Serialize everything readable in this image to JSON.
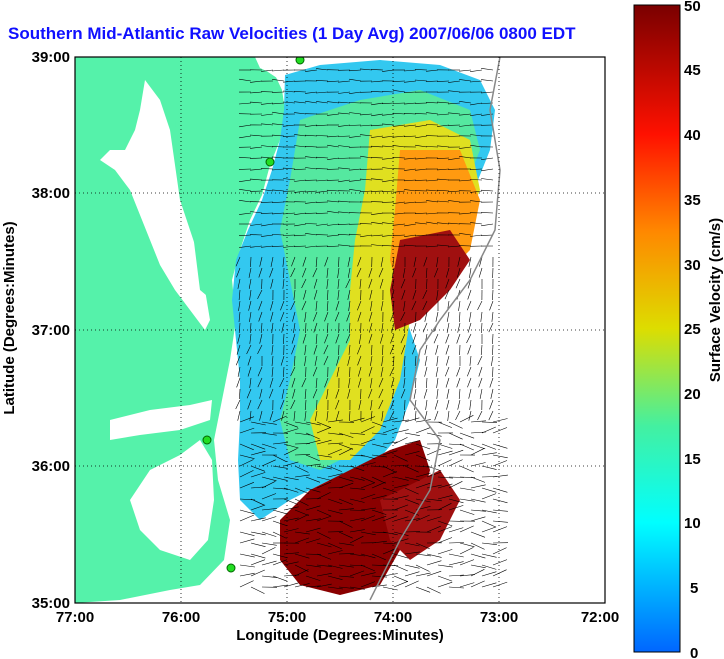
{
  "title": "Southern Mid-Atlantic Raw Velocities (1 Day Avg) 2007/06/06 0800 EDT",
  "x_axis": {
    "label": "Longitude (Degrees:Minutes)",
    "ticks": [
      "77:00",
      "76:00",
      "75:00",
      "74:00",
      "73:00",
      "72:00"
    ]
  },
  "y_axis": {
    "label": "Latitude (Degrees:Minutes)",
    "ticks": [
      "39:00",
      "38:00",
      "37:00",
      "36:00",
      "35:00"
    ]
  },
  "colorbar": {
    "label": "Surface Velocity (cm/s)",
    "ticks": [
      "50",
      "45",
      "40",
      "35",
      "30",
      "25",
      "20",
      "15",
      "10",
      "5",
      "0"
    ],
    "range": [
      0,
      50
    ]
  },
  "colors": {
    "land": "#55f2aa",
    "title": "#1010ff"
  }
}
